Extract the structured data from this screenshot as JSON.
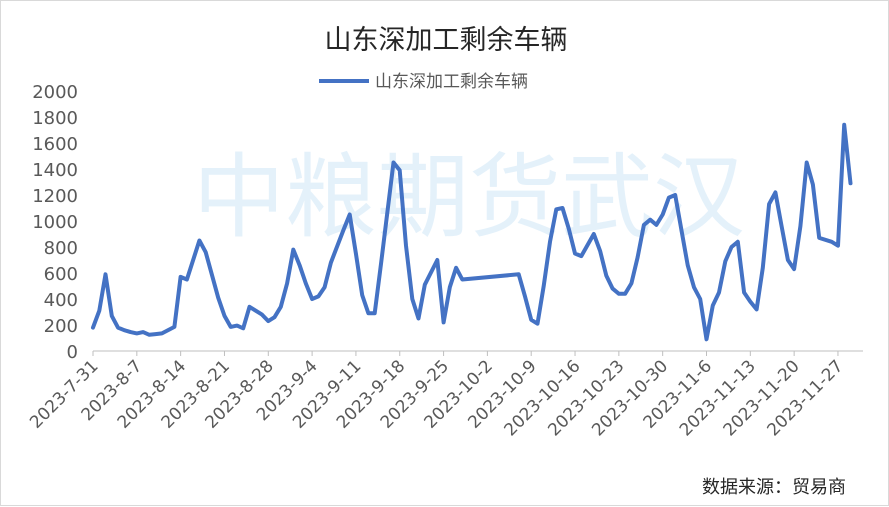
{
  "watermark": "中粮期货武汉",
  "source_note": "数据来源：贸易商",
  "colors": {
    "line": "#4472C4",
    "axis": "#bfbfbf",
    "text": "#595959"
  },
  "chart_data": {
    "type": "line",
    "title": "山东深加工剩余车辆",
    "legend_position": "top-center",
    "grid": false,
    "ylim": [
      0,
      2000
    ],
    "yticks": [
      0,
      200,
      400,
      600,
      800,
      1000,
      1200,
      1400,
      1600,
      1800,
      2000
    ],
    "xlim": [
      "2023-7-31",
      "2023-12-1"
    ],
    "xticks": [
      "2023-7-31",
      "2023-8-7",
      "2023-8-14",
      "2023-8-21",
      "2023-8-28",
      "2023-9-4",
      "2023-9-11",
      "2023-9-18",
      "2023-9-25",
      "2023-10-2",
      "2023-10-9",
      "2023-10-16",
      "2023-10-23",
      "2023-10-30",
      "2023-11-6",
      "2023-11-13",
      "2023-11-20",
      "2023-11-27"
    ],
    "series": [
      {
        "name": "山东深加工剩余车辆",
        "x": [
          "2023-7-31",
          "2023-8-1",
          "2023-8-2",
          "2023-8-3",
          "2023-8-4",
          "2023-8-5",
          "2023-8-6",
          "2023-8-7",
          "2023-8-8",
          "2023-8-9",
          "2023-8-10",
          "2023-8-11",
          "2023-8-13",
          "2023-8-14",
          "2023-8-15",
          "2023-8-17",
          "2023-8-18",
          "2023-8-20",
          "2023-8-21",
          "2023-8-22",
          "2023-8-23",
          "2023-8-24",
          "2023-8-25",
          "2023-8-27",
          "2023-8-28",
          "2023-8-29",
          "2023-8-30",
          "2023-8-31",
          "2023-9-1",
          "2023-9-2",
          "2023-9-3",
          "2023-9-4",
          "2023-9-5",
          "2023-9-6",
          "2023-9-7",
          "2023-9-9",
          "2023-9-10",
          "2023-9-11",
          "2023-9-12",
          "2023-9-13",
          "2023-9-14",
          "2023-9-15",
          "2023-9-17",
          "2023-9-18",
          "2023-9-19",
          "2023-9-20",
          "2023-9-21",
          "2023-9-22",
          "2023-9-24",
          "2023-9-25",
          "2023-9-26",
          "2023-9-27",
          "2023-9-28",
          "2023-10-7",
          "2023-10-8",
          "2023-10-9",
          "2023-10-10",
          "2023-10-11",
          "2023-10-12",
          "2023-10-13",
          "2023-10-14",
          "2023-10-15",
          "2023-10-16",
          "2023-10-17",
          "2023-10-19",
          "2023-10-20",
          "2023-10-21",
          "2023-10-22",
          "2023-10-23",
          "2023-10-24",
          "2023-10-25",
          "2023-10-26",
          "2023-10-27",
          "2023-10-28",
          "2023-10-29",
          "2023-10-30",
          "2023-10-31",
          "2023-11-1",
          "2023-11-3",
          "2023-11-4",
          "2023-11-5",
          "2023-11-6",
          "2023-11-7",
          "2023-11-8",
          "2023-11-9",
          "2023-11-10",
          "2023-11-11",
          "2023-11-12",
          "2023-11-13",
          "2023-11-14",
          "2023-11-15",
          "2023-11-16",
          "2023-11-17",
          "2023-11-18",
          "2023-11-19",
          "2023-11-20",
          "2023-11-21",
          "2023-11-22",
          "2023-11-23",
          "2023-11-24",
          "2023-11-26",
          "2023-11-27",
          "2023-11-28",
          "2023-11-29"
        ],
        "values": [
          180,
          310,
          590,
          270,
          180,
          160,
          145,
          135,
          145,
          125,
          130,
          135,
          185,
          570,
          550,
          850,
          760,
          410,
          270,
          185,
          195,
          175,
          340,
          280,
          230,
          260,
          340,
          520,
          780,
          660,
          520,
          400,
          420,
          490,
          680,
          930,
          1050,
          750,
          430,
          290,
          290,
          670,
          1450,
          1390,
          810,
          400,
          250,
          510,
          700,
          220,
          490,
          640,
          550,
          590,
          420,
          240,
          210,
          500,
          840,
          1090,
          1100,
          940,
          750,
          730,
          900,
          770,
          580,
          480,
          440,
          440,
          520,
          720,
          970,
          1010,
          970,
          1050,
          1180,
          1200,
          660,
          490,
          400,
          90,
          350,
          450,
          690,
          800,
          840,
          450,
          380,
          320,
          640,
          1130,
          1220,
          960,
          700,
          630,
          960,
          1450,
          1280,
          870,
          840,
          810,
          1740,
          1290
        ]
      }
    ]
  }
}
